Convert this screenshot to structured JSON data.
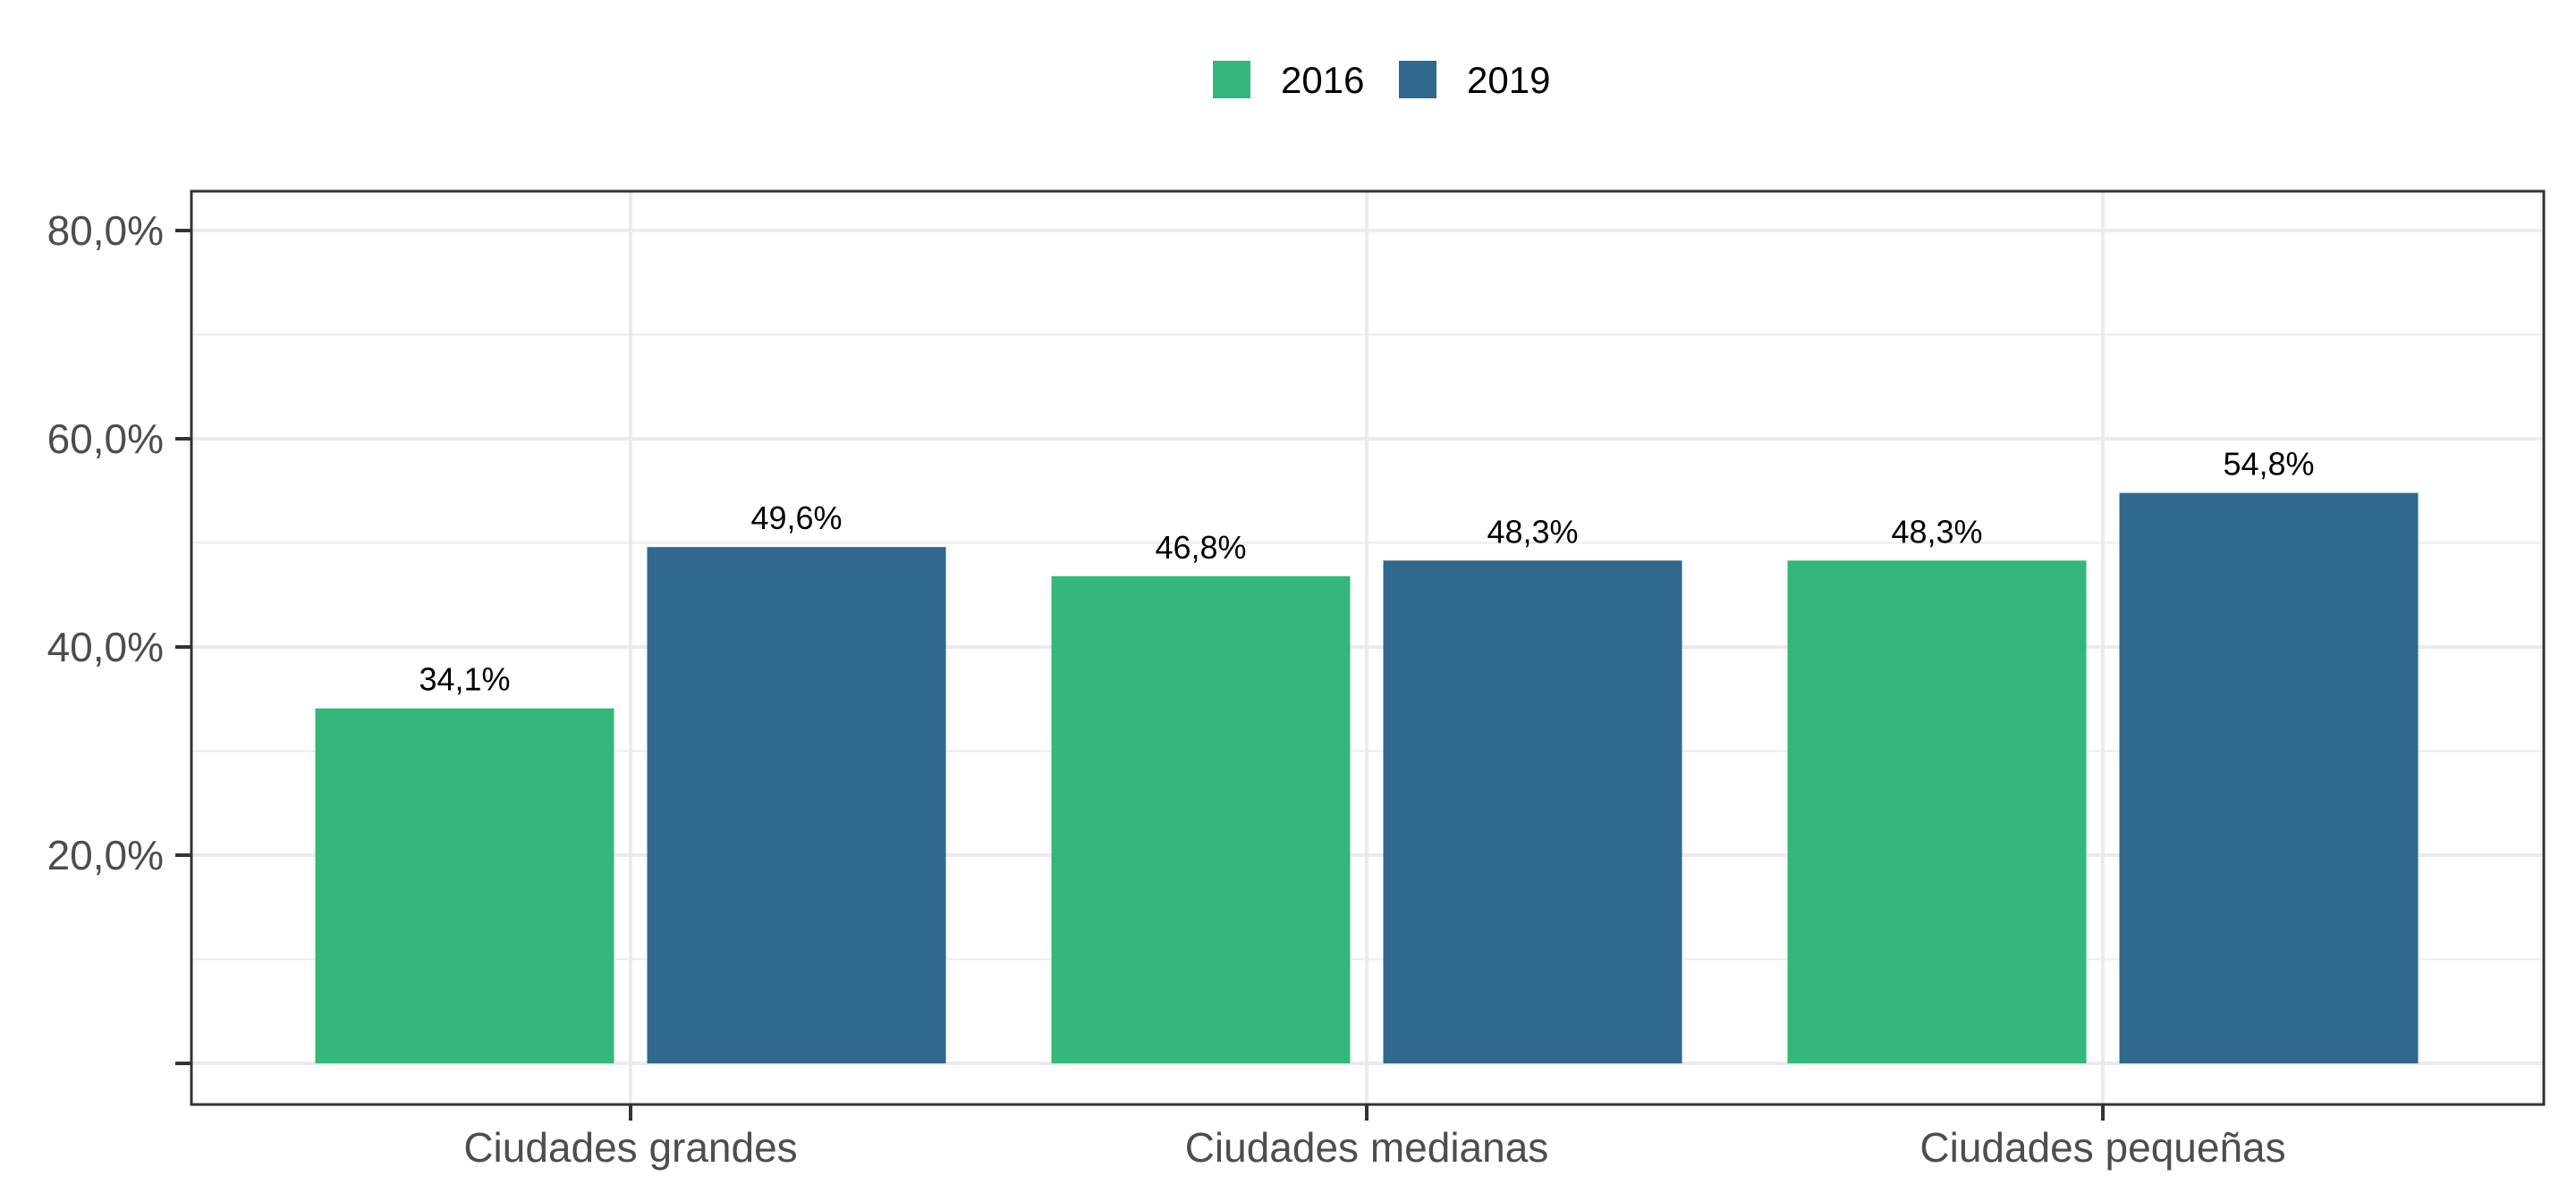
{
  "chart_data": {
    "type": "bar",
    "title": "",
    "xlabel": "",
    "ylabel": "",
    "categories": [
      "Ciudades grandes",
      "Ciudades medianas",
      "Ciudades pequeñas"
    ],
    "series": [
      {
        "name": "2016",
        "color": "#33b77a",
        "values": [
          34.1,
          46.8,
          48.3
        ],
        "labels": [
          "34,1%",
          "46,8%",
          "48,3%"
        ]
      },
      {
        "name": "2019",
        "color": "#31688e",
        "values": [
          49.6,
          48.3,
          54.8
        ],
        "labels": [
          "49,6%",
          "48,3%",
          "54,8%"
        ]
      }
    ],
    "ylim": [
      0,
      84
    ],
    "y_ticks": [
      0,
      20,
      40,
      60,
      80
    ],
    "y_tick_labels": [
      "",
      "20,0%",
      "40,0%",
      "60,0%",
      "80,0%"
    ],
    "grid": true,
    "legend_position": "top"
  }
}
